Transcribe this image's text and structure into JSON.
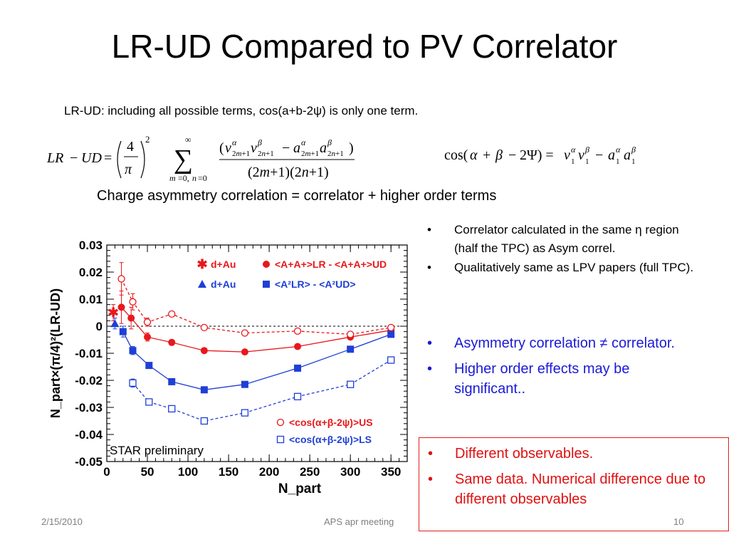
{
  "slide": {
    "title": "LR-UD Compared to PV Correlator",
    "subtitle": "LR-UD:  including all possible terms, cos(a+b-2ψ) is only one term.",
    "formula_left": "LR − UD = (4/π)² Σ_{m=0,n=0}^{∞} (v^α_{2m+1} v^β_{2n+1} − a^α_{2m+1} a^β_{2n+1}) / ((2m+1)(2n+1))",
    "formula_right": "cos(α + β − 2Ψ) = v₁^α v₁^β − a₁^α a₁^β",
    "highlight": "Charge asymmetry correlation = correlator + higher order terms"
  },
  "bullets_black": [
    "Correlator calculated in the same η region (half the TPC) as Asym correl.",
    "Qualitatively same as LPV papers (full TPC)."
  ],
  "bullets_blue": [
    "Asymmetry correlation ≠ correlator.",
    "Higher order effects may be significant.."
  ],
  "bullets_red": [
    "Different observables.",
    "Same data. Numerical difference due to different observables"
  ],
  "footer": {
    "date": "2/15/2010",
    "center": "APS apr meeting",
    "page": "10"
  },
  "colors": {
    "red": "#e8181c",
    "blue": "#1f3fd6",
    "red_text": "#e01010",
    "blue_text": "#1a1ad6"
  },
  "chart_data": {
    "type": "scatter",
    "xlabel": "N_part",
    "ylabel": "N_part×(π/4)²(LR-UD)",
    "xlim": [
      0,
      370
    ],
    "ylim": [
      -0.05,
      0.03
    ],
    "x_ticks": [
      "0",
      "50",
      "100",
      "150",
      "200",
      "250",
      "300",
      "350"
    ],
    "y_ticks": [
      "0.03",
      "0.02",
      "0.01",
      "0",
      "-0.01",
      "-0.02",
      "-0.03",
      "-0.04",
      "-0.05"
    ],
    "annotation": "STAR preliminary",
    "legend_placement": "top-right",
    "series": [
      {
        "name": "d+Au",
        "style": "red-star",
        "x": [
          8
        ],
        "y": [
          0.005
        ],
        "err": [
          0.003
        ]
      },
      {
        "name": "<A+A+>LR - <A+A+>UD",
        "style": "red-filled-circle",
        "x": [
          18,
          30,
          50,
          80,
          120,
          170,
          235,
          300,
          350
        ],
        "y": [
          0.007,
          0.003,
          -0.004,
          -0.006,
          -0.009,
          -0.0095,
          -0.0075,
          -0.004,
          -0.0015
        ],
        "err": [
          0.006,
          0.004,
          0.0015,
          0.001,
          0.0008,
          0.0008,
          0.0008,
          0.0008,
          0.0008
        ]
      },
      {
        "name": "d+Au",
        "style": "blue-triangle",
        "x": [
          10
        ],
        "y": [
          0.001
        ],
        "err": [
          0.002
        ]
      },
      {
        "name": "<A²LR> - <A²UD>",
        "style": "blue-filled-square",
        "x": [
          20,
          32,
          52,
          80,
          120,
          170,
          235,
          300,
          350
        ],
        "y": [
          -0.002,
          -0.009,
          -0.0145,
          -0.0205,
          -0.0235,
          -0.0215,
          -0.0155,
          -0.0085,
          -0.003
        ],
        "err": [
          0.002,
          0.0015,
          0.001,
          0.0008,
          0.0008,
          0.0008,
          0.0008,
          0.0008,
          0.0008
        ]
      },
      {
        "name": "<cos(α+β-2ψ)>US",
        "style": "red-open-circle",
        "x": [
          18,
          32,
          50,
          80,
          120,
          170,
          235,
          300,
          350
        ],
        "y": [
          0.0175,
          0.009,
          0.0015,
          0.0045,
          -0.0005,
          -0.0025,
          -0.0018,
          -0.003,
          -0.0005
        ],
        "err": [
          0.006,
          0.003,
          0.0015,
          0.0008,
          0.0005,
          0.0005,
          0.0005,
          0.0005,
          0.0005
        ]
      },
      {
        "name": "<cos(α+β-2ψ)>LS",
        "style": "blue-open-square",
        "x": [
          32,
          52,
          80,
          120,
          170,
          235,
          300,
          350
        ],
        "y": [
          -0.021,
          -0.028,
          -0.0305,
          -0.035,
          -0.032,
          -0.026,
          -0.0215,
          -0.0125
        ],
        "err": [
          0.0015,
          0.001,
          0.0008,
          0.0008,
          0.0008,
          0.0008,
          0.0008,
          0.0008
        ]
      }
    ],
    "legend": [
      {
        "label": "d+Au",
        "style": "red-star"
      },
      {
        "label": "<A+A+>LR - <A+A+>UD",
        "style": "red-filled-circle"
      },
      {
        "label": "d+Au",
        "style": "blue-triangle"
      },
      {
        "label": "<A²LR> - <A²UD>",
        "style": "blue-filled-square"
      },
      {
        "label": "<cos(α+β-2ψ)>US",
        "style": "red-open-circle"
      },
      {
        "label": "<cos(α+β-2ψ)>LS",
        "style": "blue-open-square"
      }
    ]
  }
}
